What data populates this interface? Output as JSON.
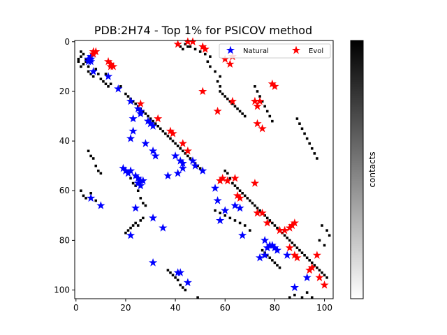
{
  "chart_data": {
    "type": "scatter",
    "title": "PDB:2H74 - Top 1% for PSICOV method",
    "xlabel": "",
    "ylabel": "",
    "xlim": [
      -0.5,
      103.5
    ],
    "ylim": [
      103.5,
      -0.5
    ],
    "x_ticks": [
      0,
      20,
      40,
      60,
      80,
      100
    ],
    "y_ticks": [
      0,
      20,
      40,
      60,
      80,
      100
    ],
    "grid": false,
    "legend_position": "top-right",
    "background": {
      "type": "heatmap",
      "name": "contacts",
      "colormap": "gray_r",
      "contacts": [
        [
          1,
          7
        ],
        [
          1,
          8
        ],
        [
          2,
          4
        ],
        [
          2,
          6
        ],
        [
          2,
          10
        ],
        [
          3,
          5
        ],
        [
          3,
          9
        ],
        [
          4,
          7
        ],
        [
          4,
          8
        ],
        [
          5,
          10
        ],
        [
          5,
          12
        ],
        [
          6,
          13
        ],
        [
          7,
          12
        ],
        [
          7,
          14
        ],
        [
          8,
          11
        ],
        [
          9,
          13
        ],
        [
          10,
          15
        ],
        [
          11,
          16
        ],
        [
          12,
          13
        ],
        [
          12,
          17
        ],
        [
          13,
          18
        ],
        [
          14,
          17
        ],
        [
          5,
          44
        ],
        [
          6,
          46
        ],
        [
          7,
          47
        ],
        [
          8,
          50
        ],
        [
          9,
          52
        ],
        [
          10,
          53
        ],
        [
          2,
          60
        ],
        [
          3,
          62
        ],
        [
          4,
          63
        ],
        [
          6,
          61
        ],
        [
          8,
          64
        ],
        [
          10,
          66
        ],
        [
          18,
          18
        ],
        [
          20,
          21
        ],
        [
          21,
          22
        ],
        [
          22,
          23
        ],
        [
          23,
          24
        ],
        [
          24,
          25
        ],
        [
          25,
          26
        ],
        [
          26,
          27
        ],
        [
          27,
          28
        ],
        [
          28,
          29
        ],
        [
          29,
          30
        ],
        [
          30,
          31
        ],
        [
          31,
          32
        ],
        [
          32,
          33
        ],
        [
          33,
          34
        ],
        [
          34,
          35
        ],
        [
          35,
          36
        ],
        [
          36,
          37
        ],
        [
          37,
          38
        ],
        [
          38,
          39
        ],
        [
          39,
          40
        ],
        [
          40,
          41
        ],
        [
          41,
          42
        ],
        [
          42,
          43
        ],
        [
          43,
          44
        ],
        [
          44,
          45
        ],
        [
          45,
          46
        ],
        [
          46,
          47
        ],
        [
          47,
          48
        ],
        [
          48,
          49
        ],
        [
          49,
          50
        ],
        [
          50,
          51
        ],
        [
          51,
          52
        ],
        [
          20,
          52
        ],
        [
          21,
          53
        ],
        [
          22,
          55
        ],
        [
          23,
          57
        ],
        [
          24,
          58
        ],
        [
          25,
          60
        ],
        [
          26,
          63
        ],
        [
          27,
          65
        ],
        [
          28,
          66
        ],
        [
          20,
          77
        ],
        [
          21,
          76
        ],
        [
          22,
          75
        ],
        [
          23,
          74
        ],
        [
          24,
          73
        ],
        [
          25,
          74
        ],
        [
          26,
          72
        ],
        [
          27,
          71
        ],
        [
          41,
          1
        ],
        [
          42,
          2
        ],
        [
          43,
          3
        ],
        [
          44,
          1
        ],
        [
          45,
          2
        ],
        [
          46,
          2
        ],
        [
          48,
          3
        ],
        [
          50,
          4
        ],
        [
          52,
          5
        ],
        [
          54,
          6
        ],
        [
          53,
          8
        ],
        [
          54,
          10
        ],
        [
          56,
          12
        ],
        [
          58,
          14
        ],
        [
          57,
          16
        ],
        [
          58,
          18
        ],
        [
          48,
          105
        ],
        [
          50,
          104
        ],
        [
          49,
          103
        ],
        [
          37,
          92
        ],
        [
          38,
          93
        ],
        [
          39,
          94
        ],
        [
          40,
          95
        ],
        [
          41,
          96
        ],
        [
          42,
          98
        ],
        [
          43,
          99
        ],
        [
          44,
          100
        ],
        [
          60,
          52
        ],
        [
          61,
          53
        ],
        [
          62,
          55
        ],
        [
          63,
          57
        ],
        [
          64,
          58
        ],
        [
          65,
          59
        ],
        [
          66,
          60
        ],
        [
          67,
          61
        ],
        [
          68,
          62
        ],
        [
          69,
          63
        ],
        [
          70,
          64
        ],
        [
          71,
          65
        ],
        [
          72,
          66
        ],
        [
          73,
          67
        ],
        [
          74,
          68
        ],
        [
          75,
          69
        ],
        [
          76,
          70
        ],
        [
          77,
          71
        ],
        [
          78,
          72
        ],
        [
          79,
          73
        ],
        [
          80,
          74
        ],
        [
          81,
          75
        ],
        [
          82,
          76
        ],
        [
          83,
          77
        ],
        [
          84,
          78
        ],
        [
          85,
          79
        ],
        [
          86,
          80
        ],
        [
          87,
          81
        ],
        [
          88,
          82
        ],
        [
          89,
          83
        ],
        [
          90,
          84
        ],
        [
          91,
          85
        ],
        [
          92,
          86
        ],
        [
          93,
          87
        ],
        [
          94,
          88
        ],
        [
          95,
          89
        ],
        [
          96,
          90
        ],
        [
          97,
          91
        ],
        [
          98,
          92
        ],
        [
          99,
          93
        ],
        [
          100,
          94
        ],
        [
          101,
          95
        ],
        [
          58,
          20
        ],
        [
          59,
          21
        ],
        [
          60,
          22
        ],
        [
          61,
          23
        ],
        [
          62,
          24
        ],
        [
          63,
          25
        ],
        [
          64,
          26
        ],
        [
          65,
          27
        ],
        [
          66,
          28
        ],
        [
          67,
          29
        ],
        [
          68,
          30
        ],
        [
          72,
          18
        ],
        [
          73,
          20
        ],
        [
          74,
          22
        ],
        [
          75,
          24
        ],
        [
          76,
          26
        ],
        [
          77,
          28
        ],
        [
          78,
          30
        ],
        [
          79,
          32
        ],
        [
          89,
          31
        ],
        [
          90,
          33
        ],
        [
          91,
          35
        ],
        [
          92,
          37
        ],
        [
          93,
          39
        ],
        [
          94,
          41
        ],
        [
          95,
          43
        ],
        [
          96,
          45
        ],
        [
          97,
          47
        ],
        [
          99,
          74
        ],
        [
          101,
          76
        ],
        [
          102,
          78
        ],
        [
          98,
          80
        ],
        [
          100,
          82
        ],
        [
          95,
          103
        ],
        [
          93,
          101
        ],
        [
          91,
          103
        ],
        [
          88,
          102
        ],
        [
          86,
          103
        ],
        [
          84,
          104
        ],
        [
          56,
          68
        ],
        [
          58,
          69
        ],
        [
          60,
          70
        ],
        [
          62,
          71
        ],
        [
          64,
          72
        ],
        [
          66,
          73
        ],
        [
          68,
          74
        ],
        [
          70,
          76
        ],
        [
          75,
          84
        ],
        [
          76,
          85
        ],
        [
          77,
          86
        ],
        [
          78,
          87
        ],
        [
          79,
          88
        ],
        [
          80,
          89
        ],
        [
          81,
          90
        ],
        [
          82,
          91
        ]
      ]
    },
    "series": [
      {
        "name": "Natural",
        "color": "#0000ff",
        "marker": "star",
        "points": [
          [
            6,
            6
          ],
          [
            5,
            7
          ],
          [
            6,
            7
          ],
          [
            5,
            8
          ],
          [
            6,
            8
          ],
          [
            7,
            12
          ],
          [
            13,
            14
          ],
          [
            17,
            19
          ],
          [
            22,
            24
          ],
          [
            25,
            27
          ],
          [
            26,
            28
          ],
          [
            26,
            29
          ],
          [
            23,
            31
          ],
          [
            29,
            32
          ],
          [
            30,
            33
          ],
          [
            31,
            34
          ],
          [
            23,
            36
          ],
          [
            22,
            39
          ],
          [
            28,
            41
          ],
          [
            31,
            44
          ],
          [
            32,
            46
          ],
          [
            40,
            46
          ],
          [
            42,
            48
          ],
          [
            43,
            49
          ],
          [
            47,
            48
          ],
          [
            48,
            50
          ],
          [
            51,
            52
          ],
          [
            19,
            51
          ],
          [
            20,
            52
          ],
          [
            22,
            52
          ],
          [
            21,
            53
          ],
          [
            24,
            54
          ],
          [
            25,
            55
          ],
          [
            26,
            56
          ],
          [
            27,
            56
          ],
          [
            25,
            57
          ],
          [
            26,
            58
          ],
          [
            37,
            54
          ],
          [
            41,
            53
          ],
          [
            43,
            51
          ],
          [
            56,
            59
          ],
          [
            57,
            64
          ],
          [
            58,
            72
          ],
          [
            60,
            68
          ],
          [
            64,
            66
          ],
          [
            66,
            67
          ],
          [
            67,
            78
          ],
          [
            6,
            63
          ],
          [
            10,
            66
          ],
          [
            24,
            67
          ],
          [
            31,
            71
          ],
          [
            35,
            75
          ],
          [
            22,
            78
          ],
          [
            31,
            89
          ],
          [
            41,
            93
          ],
          [
            42,
            93
          ],
          [
            45,
            97
          ],
          [
            76,
            80
          ],
          [
            77,
            83
          ],
          [
            78,
            82
          ],
          [
            79,
            82
          ],
          [
            80,
            83
          ],
          [
            81,
            84
          ],
          [
            76,
            86
          ],
          [
            74,
            87
          ],
          [
            85,
            86
          ],
          [
            93,
            95
          ],
          [
            88,
            99
          ]
        ]
      },
      {
        "name": "Evol",
        "color": "#ff0000",
        "marker": "star",
        "points": [
          [
            7,
            4
          ],
          [
            7,
            5
          ],
          [
            8,
            4
          ],
          [
            13,
            8
          ],
          [
            14,
            9
          ],
          [
            14,
            10
          ],
          [
            15,
            10
          ],
          [
            41,
            1
          ],
          [
            45,
            0
          ],
          [
            47,
            0
          ],
          [
            51,
            2
          ],
          [
            52,
            3
          ],
          [
            60,
            7
          ],
          [
            63,
            6
          ],
          [
            62,
            9
          ],
          [
            51,
            20
          ],
          [
            63,
            24
          ],
          [
            72,
            24
          ],
          [
            73,
            26
          ],
          [
            74,
            24
          ],
          [
            75,
            35
          ],
          [
            73,
            33
          ],
          [
            79,
            17
          ],
          [
            80,
            18
          ],
          [
            57,
            28
          ],
          [
            26,
            25
          ],
          [
            33,
            31
          ],
          [
            38,
            36
          ],
          [
            39,
            37
          ],
          [
            43,
            41
          ],
          [
            45,
            44
          ],
          [
            58,
            56
          ],
          [
            59,
            55
          ],
          [
            61,
            56
          ],
          [
            64,
            55
          ],
          [
            72,
            57
          ],
          [
            65,
            62
          ],
          [
            66,
            63
          ],
          [
            73,
            69
          ],
          [
            75,
            69
          ],
          [
            77,
            73
          ],
          [
            82,
            76
          ],
          [
            84,
            76
          ],
          [
            86,
            75
          ],
          [
            87,
            74
          ],
          [
            88,
            73
          ],
          [
            86,
            83
          ],
          [
            88,
            86
          ],
          [
            89,
            87
          ],
          [
            97,
            86
          ],
          [
            94,
            92
          ],
          [
            95,
            91
          ],
          [
            98,
            95
          ],
          [
            100,
            98
          ]
        ]
      }
    ],
    "colorbar": {
      "label": "contacts",
      "min_color": "#ffffff",
      "max_color": "#000000"
    }
  }
}
